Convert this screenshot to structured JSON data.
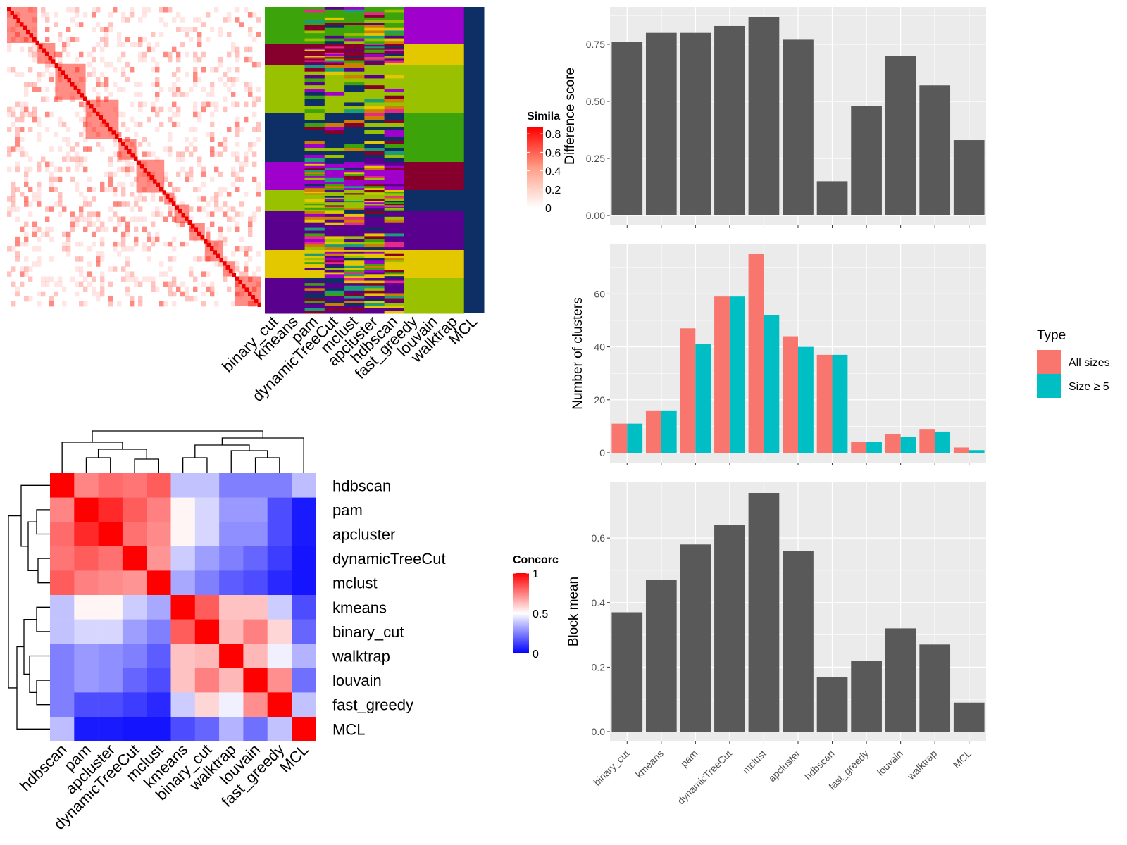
{
  "chart_data": [
    {
      "type": "heatmap",
      "panel": "similarity-matrix",
      "legend": {
        "title": "Simila",
        "tick_labels": [
          "0.8",
          "0.6",
          "0.4",
          "0.2",
          "0"
        ],
        "tick_values": [
          0.8,
          0.6,
          0.4,
          0.2,
          0
        ],
        "colors": [
          "#FF0000",
          "#FFFFFF"
        ]
      }
    },
    {
      "type": "heatmap",
      "panel": "cluster-membership",
      "columns": [
        "binary_cut",
        "kmeans",
        "pam",
        "dynamicTreeCut",
        "mclust",
        "apcluster",
        "hdbscan",
        "fast_greedy",
        "louvain",
        "walktrap",
        "MCL"
      ],
      "colors": [
        "#3DA30B",
        "#9AC100",
        "#0E2F66",
        "#A000CC",
        "#E3C800",
        "#87002D",
        "#CC7F00",
        "#1B9E77",
        "#E7298A",
        "#5A008F"
      ]
    },
    {
      "type": "heatmap",
      "panel": "concordance-matrix",
      "rows": [
        "hdbscan",
        "pam",
        "apcluster",
        "dynamicTreeCut",
        "mclust",
        "kmeans",
        "binary_cut",
        "walktrap",
        "louvain",
        "fast_greedy",
        "MCL"
      ],
      "columns": [
        "hdbscan",
        "pam",
        "apcluster",
        "dynamicTreeCut",
        "mclust",
        "kmeans",
        "binary_cut",
        "walktrap",
        "louvain",
        "fast_greedy",
        "MCL"
      ],
      "values": [
        [
          1.0,
          0.74,
          0.79,
          0.77,
          0.82,
          0.38,
          0.38,
          0.25,
          0.25,
          0.25,
          0.37
        ],
        [
          0.74,
          1.0,
          0.92,
          0.82,
          0.75,
          0.52,
          0.42,
          0.3,
          0.3,
          0.15,
          0.05
        ],
        [
          0.79,
          0.92,
          1.0,
          0.78,
          0.73,
          0.52,
          0.42,
          0.28,
          0.28,
          0.15,
          0.05
        ],
        [
          0.77,
          0.82,
          0.78,
          1.0,
          0.71,
          0.4,
          0.31,
          0.25,
          0.2,
          0.12,
          0.04
        ],
        [
          0.82,
          0.75,
          0.73,
          0.71,
          1.0,
          0.33,
          0.25,
          0.18,
          0.15,
          0.08,
          0.04
        ],
        [
          0.38,
          0.52,
          0.52,
          0.4,
          0.33,
          1.0,
          0.82,
          0.62,
          0.62,
          0.4,
          0.15
        ],
        [
          0.38,
          0.42,
          0.42,
          0.31,
          0.25,
          0.82,
          1.0,
          0.64,
          0.75,
          0.58,
          0.2
        ],
        [
          0.25,
          0.3,
          0.28,
          0.25,
          0.18,
          0.62,
          0.64,
          1.0,
          0.64,
          0.47,
          0.35
        ],
        [
          0.25,
          0.3,
          0.28,
          0.2,
          0.15,
          0.62,
          0.75,
          0.64,
          1.0,
          0.72,
          0.22
        ],
        [
          0.25,
          0.15,
          0.15,
          0.12,
          0.08,
          0.4,
          0.58,
          0.47,
          0.72,
          1.0,
          0.38
        ],
        [
          0.37,
          0.05,
          0.05,
          0.04,
          0.04,
          0.15,
          0.2,
          0.35,
          0.22,
          0.38,
          1.0
        ]
      ],
      "legend": {
        "title": "Concorc",
        "tick_labels": [
          "1",
          "0.5",
          "0"
        ],
        "tick_values": [
          1,
          0.5,
          0
        ]
      }
    },
    {
      "type": "bar",
      "panel": "difference-score",
      "categories": [
        "binary_cut",
        "kmeans",
        "pam",
        "dynamicTreeCut",
        "mclust",
        "apcluster",
        "hdbscan",
        "fast_greedy",
        "louvain",
        "walktrap",
        "MCL"
      ],
      "values": [
        0.76,
        0.8,
        0.8,
        0.83,
        0.87,
        0.77,
        0.15,
        0.48,
        0.7,
        0.57,
        0.33
      ],
      "ylabel": "Difference score",
      "ylim": [
        0,
        0.87
      ],
      "yticks": [
        0,
        0.25,
        0.5,
        0.75
      ],
      "ytick_labels": [
        "0.00",
        "0.25",
        "0.50",
        "0.75"
      ],
      "grid": true
    },
    {
      "type": "bar",
      "panel": "number-of-clusters",
      "categories": [
        "binary_cut",
        "kmeans",
        "pam",
        "dynamicTreeCut",
        "mclust",
        "apcluster",
        "hdbscan",
        "fast_greedy",
        "louvain",
        "walktrap",
        "MCL"
      ],
      "series": [
        {
          "name": "All sizes",
          "values": [
            11,
            16,
            47,
            59,
            75,
            44,
            37,
            4,
            7,
            9,
            2
          ]
        },
        {
          "name": "Size ≥ 5",
          "values": [
            11,
            16,
            41,
            59,
            52,
            40,
            37,
            4,
            6,
            8,
            1
          ]
        }
      ],
      "ylabel": "Number of clusters",
      "ylim": [
        0,
        75
      ],
      "yticks": [
        0,
        20,
        40,
        60
      ],
      "ytick_labels": [
        "0",
        "20",
        "40",
        "60"
      ],
      "legend": {
        "title": "Type",
        "placement": "right"
      },
      "colors": [
        "#F8766D",
        "#00BFC4"
      ],
      "grid": true
    },
    {
      "type": "bar",
      "panel": "block-mean",
      "categories": [
        "binary_cut",
        "kmeans",
        "pam",
        "dynamicTreeCut",
        "mclust",
        "apcluster",
        "hdbscan",
        "fast_greedy",
        "louvain",
        "walktrap",
        "MCL"
      ],
      "values": [
        0.37,
        0.47,
        0.58,
        0.64,
        0.74,
        0.56,
        0.17,
        0.22,
        0.32,
        0.27,
        0.09
      ],
      "ylabel": "Block mean",
      "ylim": [
        0,
        0.74
      ],
      "yticks": [
        0,
        0.2,
        0.4,
        0.6
      ],
      "ytick_labels": [
        "0.0",
        "0.2",
        "0.4",
        "0.6"
      ],
      "grid": true
    }
  ]
}
